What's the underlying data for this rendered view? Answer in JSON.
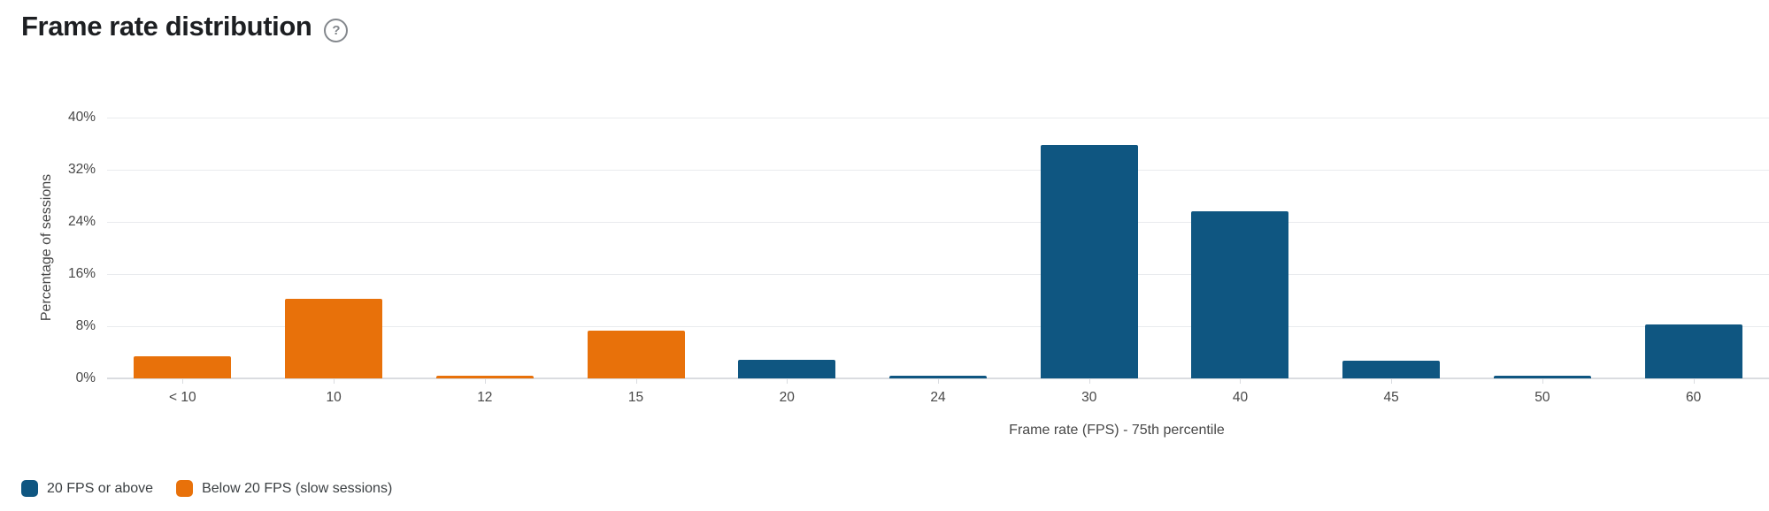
{
  "header": {
    "title": "Frame rate distribution",
    "help_glyph": "?"
  },
  "chart_data": {
    "type": "bar",
    "title": "Frame rate distribution",
    "xlabel": "Frame rate (FPS) - 75th percentile",
    "ylabel": "Percentage of sessions",
    "ylim": [
      0,
      40
    ],
    "ytick_step": 8,
    "ytick_labels": [
      "0%",
      "8%",
      "16%",
      "24%",
      "32%",
      "40%"
    ],
    "grid": "horizontal",
    "legend_position": "bottom-left",
    "categories": [
      "< 10",
      "10",
      "12",
      "15",
      "20",
      "24",
      "30",
      "40",
      "45",
      "50",
      "60"
    ],
    "series": [
      {
        "name": "20 FPS or above",
        "color": "#0F5681",
        "values": [
          null,
          null,
          null,
          null,
          2.9,
          0.4,
          35.8,
          25.6,
          2.7,
          0.4,
          8.3
        ]
      },
      {
        "name": "Below 20 FPS (slow sessions)",
        "color": "#E8710A",
        "values": [
          3.4,
          12.2,
          0.4,
          7.3,
          null,
          null,
          null,
          null,
          null,
          null,
          null
        ]
      }
    ],
    "colors": {
      "axis_line": "#dadce0",
      "gridline": "#e9ebee",
      "tick_label": "#474747"
    }
  }
}
